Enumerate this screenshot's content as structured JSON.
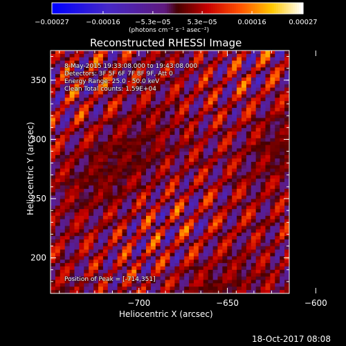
{
  "page": {
    "title": "Reconstructed RHESSI Image",
    "footer_timestamp": "18-Oct-2017 08:08",
    "colors": {
      "background": "#000000",
      "foreground": "#ffffff"
    }
  },
  "colorbar": {
    "tick_labels": [
      "-0.00027",
      "-0.00016",
      "-5.3e-05",
      "5.3e-05",
      "0.00016",
      "0.00027"
    ],
    "units_label": "(photons cm⁻² s⁻¹ asec⁻²)",
    "range": [
      -0.00027,
      0.00027
    ]
  },
  "annotations": {
    "line1": "8-May-2015 19:33:08.000 to 19:43:08.000",
    "line2": "Detectors: 3F 5F 6F 7F 8F 9F, Att 0",
    "line3": "Energy Range: 25.0 - 50.0 keV",
    "line4": "Clean     Total counts: 1.59E+04",
    "peak": "Position of Peak = [-714,351]"
  },
  "chart_data": {
    "type": "heatmap",
    "title": "Reconstructed RHESSI Image",
    "xlabel": "Heliocentric X (arcsec)",
    "ylabel": "Heliocentric Y (arcsec)",
    "xlim": [
      -750,
      -615
    ],
    "ylim": [
      170,
      375
    ],
    "x_ticks": [
      -700,
      -650,
      -600
    ],
    "x_tick_labels": [
      "−700",
      "−650",
      "−600"
    ],
    "y_ticks": [
      200,
      250,
      300,
      350
    ],
    "y_tick_labels": [
      "200",
      "250",
      "300",
      "350"
    ],
    "value_range": [
      -0.00027,
      0.00027
    ],
    "peak_position": [
      -714,
      351
    ],
    "grid": false,
    "legend": "colorbar-top",
    "pattern": {
      "description_visible": false,
      "ripple_direction": "diagonal",
      "cells_x": 50,
      "cells_y": 72
    }
  }
}
